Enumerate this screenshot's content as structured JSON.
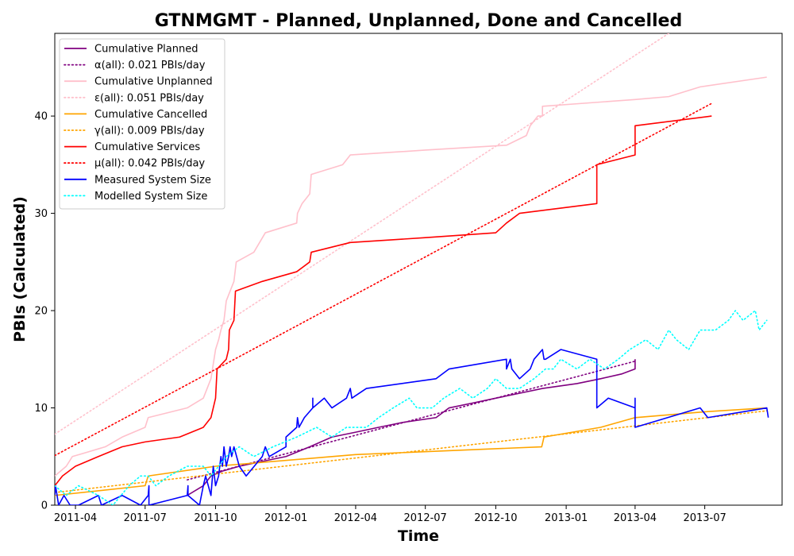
{
  "chart_data": {
    "type": "line",
    "title": "GTNMGMT - Planned, Unplanned, Done  and Cancelled",
    "xlabel": "Time",
    "ylabel": "PBIs (Calculated)",
    "xlim": [
      "2011-03-05",
      "2013-10-10"
    ],
    "ylim": [
      0,
      48.5
    ],
    "x_ticks": [
      "2011-04",
      "2011-07",
      "2011-10",
      "2012-01",
      "2012-04",
      "2012-07",
      "2012-10",
      "2013-01",
      "2013-04",
      "2013-07"
    ],
    "y_ticks": [
      0,
      10,
      20,
      30,
      40
    ],
    "grid": false,
    "legend_position": "top-left",
    "series": [
      {
        "name": "Cumulative Planned",
        "color": "#800080",
        "style": "solid",
        "points": [
          [
            "2011-08-25",
            1
          ],
          [
            "2011-09-15",
            2
          ],
          [
            "2011-09-25",
            3
          ],
          [
            "2011-10-10",
            3.5
          ],
          [
            "2011-11-01",
            4
          ],
          [
            "2011-12-01",
            4.5
          ],
          [
            "2012-01-01",
            5
          ],
          [
            "2012-02-01",
            6
          ],
          [
            "2012-03-01",
            7
          ],
          [
            "2012-04-01",
            7.5
          ],
          [
            "2012-05-01",
            8
          ],
          [
            "2012-06-01",
            8.5
          ],
          [
            "2012-07-15",
            9
          ],
          [
            "2012-08-01",
            10
          ],
          [
            "2012-09-01",
            10.5
          ],
          [
            "2012-10-01",
            11
          ],
          [
            "2012-11-01",
            11.5
          ],
          [
            "2012-12-01",
            12
          ],
          [
            "2013-01-15",
            12.5
          ],
          [
            "2013-02-15",
            13
          ],
          [
            "2013-03-15",
            13.5
          ],
          [
            "2013-04-01",
            14
          ],
          [
            "2013-04-01",
            15
          ]
        ]
      },
      {
        "name": "α(all): 0.021 PBIs/day",
        "color": "#800080",
        "style": "dotted",
        "points": [
          [
            "2011-08-25",
            2.6
          ],
          [
            "2013-04-01",
            14.8
          ]
        ]
      },
      {
        "name": "Cumulative Unplanned",
        "color": "#ffc0cb",
        "style": "solid",
        "points": [
          [
            "2011-03-05",
            3
          ],
          [
            "2011-03-20",
            4
          ],
          [
            "2011-03-28",
            5
          ],
          [
            "2011-04-10",
            5.3
          ],
          [
            "2011-05-10",
            6
          ],
          [
            "2011-06-01",
            7
          ],
          [
            "2011-07-01",
            8
          ],
          [
            "2011-07-05",
            9
          ],
          [
            "2011-08-25",
            10
          ],
          [
            "2011-09-15",
            11
          ],
          [
            "2011-09-25",
            13
          ],
          [
            "2011-10-01",
            16
          ],
          [
            "2011-10-05",
            17
          ],
          [
            "2011-10-08",
            18
          ],
          [
            "2011-10-12",
            19
          ],
          [
            "2011-10-15",
            21
          ],
          [
            "2011-10-20",
            22
          ],
          [
            "2011-10-25",
            23
          ],
          [
            "2011-10-28",
            25
          ],
          [
            "2011-11-20",
            26
          ],
          [
            "2011-12-05",
            28
          ],
          [
            "2012-01-15",
            29
          ],
          [
            "2012-01-16",
            30
          ],
          [
            "2012-01-22",
            31
          ],
          [
            "2012-02-01",
            32
          ],
          [
            "2012-02-03",
            34
          ],
          [
            "2012-03-15",
            35
          ],
          [
            "2012-03-25",
            36
          ],
          [
            "2012-07-01",
            36.5
          ],
          [
            "2012-10-15",
            37
          ],
          [
            "2012-11-10",
            38
          ],
          [
            "2012-11-15",
            39
          ],
          [
            "2012-11-25",
            40
          ],
          [
            "2012-12-01",
            40
          ],
          [
            "2012-12-01",
            41
          ],
          [
            "2013-04-01",
            41.7
          ],
          [
            "2013-05-15",
            42
          ],
          [
            "2013-06-25",
            43
          ],
          [
            "2013-09-20",
            44
          ]
        ]
      },
      {
        "name": "ε(all): 0.051 PBIs/day",
        "color": "#ffc0cb",
        "style": "dotted",
        "points": [
          [
            "2011-03-05",
            7.3
          ],
          [
            "2013-05-15",
            48.5
          ]
        ]
      },
      {
        "name": "Cumulative Cancelled",
        "color": "#ffa500",
        "style": "solid",
        "points": [
          [
            "2011-03-05",
            1
          ],
          [
            "2011-07-01",
            2
          ],
          [
            "2011-07-05",
            3
          ],
          [
            "2011-10-01",
            4
          ],
          [
            "2012-04-01",
            5.2
          ],
          [
            "2012-11-30",
            6
          ],
          [
            "2012-12-03",
            7
          ],
          [
            "2013-02-15",
            8
          ],
          [
            "2013-04-01",
            9
          ],
          [
            "2013-07-01",
            9.6
          ],
          [
            "2013-09-20",
            10
          ]
        ]
      },
      {
        "name": "γ(all): 0.009 PBIs/day",
        "color": "#ffa500",
        "style": "dotted",
        "points": [
          [
            "2011-03-05",
            1.3
          ],
          [
            "2013-09-20",
            9.7
          ]
        ]
      },
      {
        "name": "Cumulative Services",
        "color": "#ff0000",
        "style": "solid",
        "points": [
          [
            "2011-03-05",
            2
          ],
          [
            "2011-03-15",
            3
          ],
          [
            "2011-04-01",
            4
          ],
          [
            "2011-05-01",
            5
          ],
          [
            "2011-06-01",
            6
          ],
          [
            "2011-07-01",
            6.5
          ],
          [
            "2011-08-15",
            7
          ],
          [
            "2011-09-15",
            8
          ],
          [
            "2011-09-25",
            9
          ],
          [
            "2011-10-01",
            11
          ],
          [
            "2011-10-03",
            14
          ],
          [
            "2011-10-15",
            15
          ],
          [
            "2011-10-18",
            16
          ],
          [
            "2011-10-19",
            18
          ],
          [
            "2011-10-25",
            19
          ],
          [
            "2011-10-27",
            22
          ],
          [
            "2011-12-01",
            23
          ],
          [
            "2012-01-15",
            24
          ],
          [
            "2012-02-01",
            25
          ],
          [
            "2012-02-03",
            26
          ],
          [
            "2012-03-25",
            27
          ],
          [
            "2012-07-01",
            27.5
          ],
          [
            "2012-10-01",
            28
          ],
          [
            "2012-10-15",
            29
          ],
          [
            "2012-11-01",
            30
          ],
          [
            "2013-02-10",
            31
          ],
          [
            "2013-02-10",
            35
          ],
          [
            "2013-04-01",
            36
          ],
          [
            "2013-04-01",
            39
          ],
          [
            "2013-07-10",
            40
          ]
        ]
      },
      {
        "name": "μ(all): 0.042 PBIs/day",
        "color": "#ff0000",
        "style": "dotted",
        "points": [
          [
            "2011-03-05",
            5.1
          ],
          [
            "2013-07-10",
            41.3
          ]
        ]
      },
      {
        "name": "Measured System Size",
        "color": "#0000ff",
        "style": "solid",
        "points": [
          [
            "2011-03-05",
            1
          ],
          [
            "2011-03-06",
            2
          ],
          [
            "2011-03-10",
            0
          ],
          [
            "2011-03-17",
            1
          ],
          [
            "2011-03-25",
            0
          ],
          [
            "2011-04-05",
            0
          ],
          [
            "2011-05-01",
            1
          ],
          [
            "2011-05-05",
            0
          ],
          [
            "2011-06-01",
            1
          ],
          [
            "2011-06-25",
            0
          ],
          [
            "2011-07-05",
            1
          ],
          [
            "2011-07-06",
            2
          ],
          [
            "2011-07-06",
            0
          ],
          [
            "2011-08-25",
            1
          ],
          [
            "2011-08-26",
            2
          ],
          [
            "2011-08-26",
            1
          ],
          [
            "2011-09-10",
            0
          ],
          [
            "2011-09-15",
            2
          ],
          [
            "2011-09-18",
            3
          ],
          [
            "2011-09-25",
            1
          ],
          [
            "2011-09-28",
            4
          ],
          [
            "2011-10-01",
            2
          ],
          [
            "2011-10-05",
            3
          ],
          [
            "2011-10-08",
            5
          ],
          [
            "2011-10-10",
            4
          ],
          [
            "2011-10-12",
            6
          ],
          [
            "2011-10-15",
            4
          ],
          [
            "2011-10-18",
            5
          ],
          [
            "2011-10-20",
            6
          ],
          [
            "2011-10-22",
            5
          ],
          [
            "2011-10-25",
            6
          ],
          [
            "2011-11-01",
            4
          ],
          [
            "2011-11-10",
            3
          ],
          [
            "2011-12-01",
            5
          ],
          [
            "2011-12-05",
            6
          ],
          [
            "2011-12-10",
            5
          ],
          [
            "2012-01-01",
            6
          ],
          [
            "2012-01-01",
            7
          ],
          [
            "2012-01-15",
            8
          ],
          [
            "2012-01-16",
            9
          ],
          [
            "2012-01-18",
            8
          ],
          [
            "2012-01-25",
            9
          ],
          [
            "2012-02-05",
            10
          ],
          [
            "2012-02-05",
            11
          ],
          [
            "2012-02-05",
            10
          ],
          [
            "2012-02-20",
            11
          ],
          [
            "2012-03-01",
            10
          ],
          [
            "2012-03-20",
            11
          ],
          [
            "2012-03-25",
            12
          ],
          [
            "2012-03-27",
            11
          ],
          [
            "2012-04-15",
            12
          ],
          [
            "2012-07-15",
            13
          ],
          [
            "2012-08-01",
            14
          ],
          [
            "2012-10-15",
            15
          ],
          [
            "2012-10-15",
            14
          ],
          [
            "2012-10-20",
            15
          ],
          [
            "2012-10-22",
            14
          ],
          [
            "2012-11-01",
            13
          ],
          [
            "2012-11-15",
            14
          ],
          [
            "2012-11-20",
            15
          ],
          [
            "2012-12-01",
            16
          ],
          [
            "2012-12-03",
            15
          ],
          [
            "2012-12-05",
            15
          ],
          [
            "2012-12-25",
            16
          ],
          [
            "2013-02-10",
            15
          ],
          [
            "2013-02-10",
            14
          ],
          [
            "2013-02-10",
            10
          ],
          [
            "2013-02-25",
            11
          ],
          [
            "2013-04-01",
            10
          ],
          [
            "2013-04-01",
            11
          ],
          [
            "2013-04-01",
            8
          ],
          [
            "2013-06-25",
            10
          ],
          [
            "2013-07-05",
            9
          ],
          [
            "2013-09-20",
            10
          ],
          [
            "2013-09-22",
            9
          ]
        ]
      },
      {
        "name": "Modelled System Size",
        "color": "#00ffff",
        "style": "dotted",
        "points": [
          [
            "2011-03-05",
            2
          ],
          [
            "2011-03-20",
            1
          ],
          [
            "2011-04-05",
            2
          ],
          [
            "2011-05-01",
            1
          ],
          [
            "2011-05-20",
            0
          ],
          [
            "2011-06-10",
            2
          ],
          [
            "2011-06-25",
            3
          ],
          [
            "2011-07-05",
            3
          ],
          [
            "2011-07-15",
            2
          ],
          [
            "2011-08-01",
            3
          ],
          [
            "2011-08-25",
            4
          ],
          [
            "2011-09-15",
            4
          ],
          [
            "2011-09-25",
            3
          ],
          [
            "2011-10-15",
            5
          ],
          [
            "2011-11-01",
            6
          ],
          [
            "2011-11-20",
            5
          ],
          [
            "2011-12-15",
            6
          ],
          [
            "2012-01-15",
            7
          ],
          [
            "2012-02-10",
            8
          ],
          [
            "2012-03-01",
            7
          ],
          [
            "2012-03-20",
            8
          ],
          [
            "2012-04-15",
            8
          ],
          [
            "2012-05-01",
            9
          ],
          [
            "2012-05-20",
            10
          ],
          [
            "2012-06-10",
            11
          ],
          [
            "2012-06-20",
            10
          ],
          [
            "2012-07-10",
            10
          ],
          [
            "2012-07-25",
            11
          ],
          [
            "2012-08-15",
            12
          ],
          [
            "2012-09-01",
            11
          ],
          [
            "2012-09-20",
            12
          ],
          [
            "2012-10-01",
            13
          ],
          [
            "2012-10-15",
            12
          ],
          [
            "2012-11-01",
            12
          ],
          [
            "2012-11-20",
            13
          ],
          [
            "2012-12-05",
            14
          ],
          [
            "2012-12-15",
            14
          ],
          [
            "2012-12-25",
            15
          ],
          [
            "2013-01-15",
            14
          ],
          [
            "2013-02-01",
            15
          ],
          [
            "2013-02-20",
            14
          ],
          [
            "2013-03-10",
            15
          ],
          [
            "2013-03-25",
            16
          ],
          [
            "2013-04-15",
            17
          ],
          [
            "2013-05-01",
            16
          ],
          [
            "2013-05-15",
            18
          ],
          [
            "2013-05-25",
            17
          ],
          [
            "2013-06-10",
            16
          ],
          [
            "2013-06-25",
            18
          ],
          [
            "2013-07-15",
            18
          ],
          [
            "2013-08-01",
            19
          ],
          [
            "2013-08-10",
            20
          ],
          [
            "2013-08-20",
            19
          ],
          [
            "2013-09-05",
            20
          ],
          [
            "2013-09-10",
            18
          ],
          [
            "2013-09-20",
            19
          ]
        ]
      }
    ]
  }
}
